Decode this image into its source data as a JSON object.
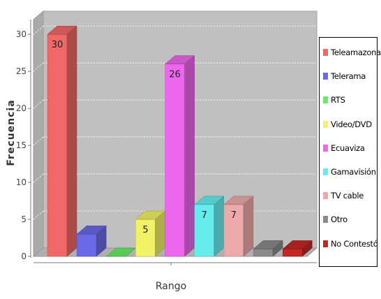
{
  "chart_data": {
    "type": "bar",
    "style": "3d",
    "xlabel": "Rango",
    "ylabel": "Frecuencia",
    "ylim": [
      0,
      32
    ],
    "yticks": [
      0,
      5,
      10,
      15,
      20,
      25,
      30
    ],
    "grid": true,
    "legend_position": "right",
    "series": [
      {
        "name": "Teleamazonas",
        "value": 30,
        "label": "30",
        "color": "#f06868"
      },
      {
        "name": "Telerama",
        "value": 3,
        "label": "",
        "color": "#6a6ae6"
      },
      {
        "name": "RTS",
        "value": 0,
        "label": "",
        "color": "#66ee66"
      },
      {
        "name": "Video/DVD",
        "value": 5,
        "label": "5",
        "color": "#f2f266"
      },
      {
        "name": "Ecuaviza",
        "value": 26,
        "label": "26",
        "color": "#ee66ee"
      },
      {
        "name": "Gamavisión",
        "value": 7,
        "label": "7",
        "color": "#66eeee"
      },
      {
        "name": "TV cable",
        "value": 7,
        "label": "7",
        "color": "#eeaaaa"
      },
      {
        "name": "Otro",
        "value": 1,
        "label": "",
        "color": "#8a8a8a"
      },
      {
        "name": "No Contestó",
        "value": 1,
        "label": "",
        "color": "#c42626"
      }
    ]
  }
}
